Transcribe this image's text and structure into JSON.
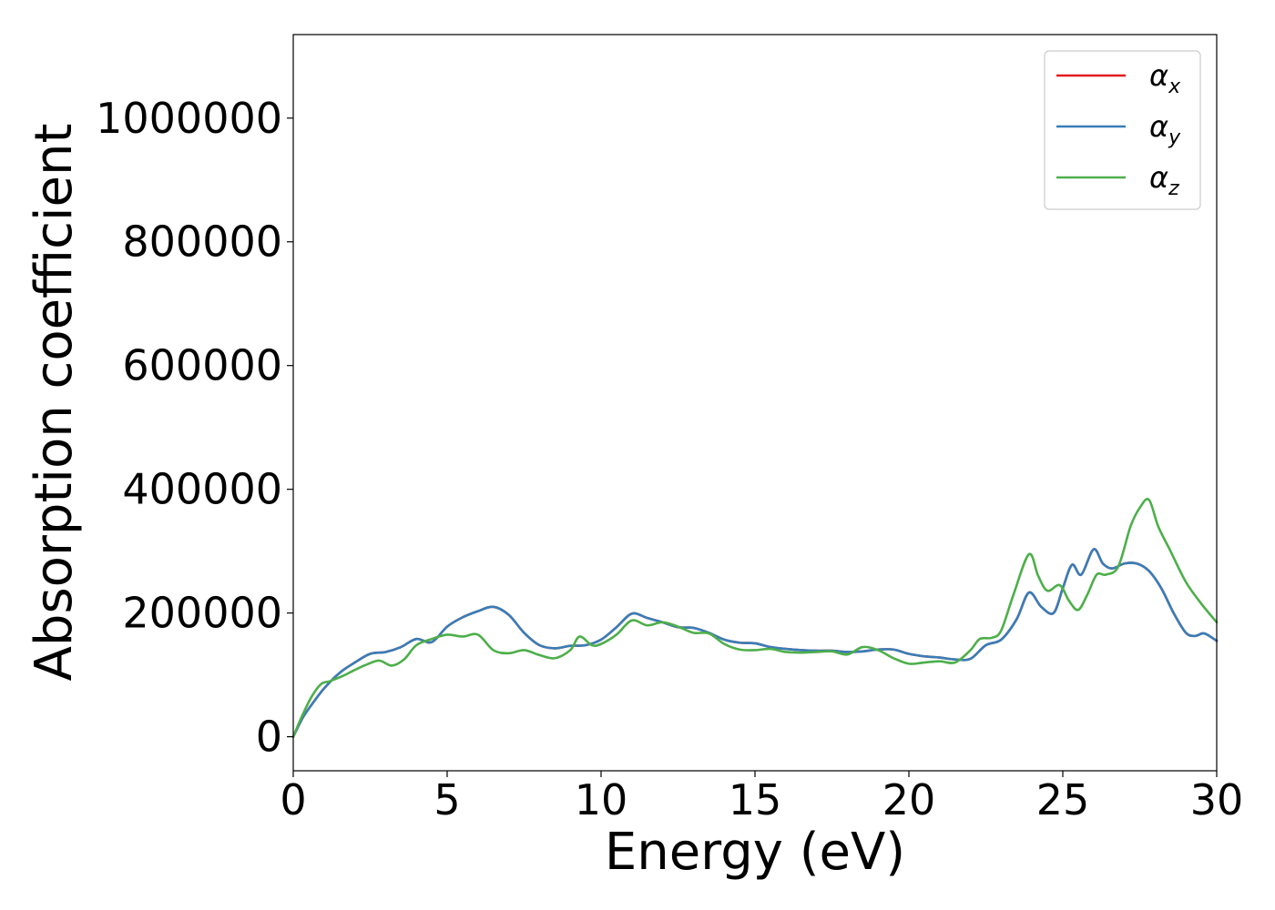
{
  "chart_data": {
    "type": "line",
    "title": "",
    "xlabel": "Energy (eV)",
    "ylabel": "Absorption coefficient",
    "xlim": [
      0,
      30
    ],
    "ylim": [
      -55000,
      1135000
    ],
    "xticks": [
      0,
      5,
      10,
      15,
      20,
      25,
      30
    ],
    "xtick_labels": [
      "0",
      "5",
      "10",
      "15",
      "20",
      "25",
      "30"
    ],
    "yticks": [
      0,
      200000,
      400000,
      600000,
      800000,
      1000000
    ],
    "ytick_labels": [
      "0",
      "200000",
      "400000",
      "600000",
      "800000",
      "1000000"
    ],
    "grid": false,
    "legend_position": "top-right",
    "series": [
      {
        "name": "α_x",
        "symbol": "α",
        "sub": "x",
        "color": "#e41a1c",
        "x": [
          0,
          0.3,
          0.6,
          1.0,
          1.5,
          2.0,
          2.5,
          3.0,
          3.5,
          4.0,
          4.5,
          5.0,
          5.5,
          6.0,
          6.5,
          7.0,
          7.5,
          8.0,
          8.5,
          9.0,
          9.5,
          10.0,
          10.5,
          11.0,
          11.5,
          12.0,
          12.5,
          13.0,
          13.5,
          14.0,
          14.5,
          15.0,
          15.5,
          16.0,
          16.5,
          17.0,
          17.5,
          18.0,
          18.5,
          19.0,
          19.5,
          20.0,
          20.5,
          21.0,
          21.5,
          22.0,
          22.5,
          23.0,
          23.5,
          23.9,
          24.3,
          24.7,
          25.0,
          25.3,
          25.6,
          26.0,
          26.3,
          26.6,
          27.0,
          27.4,
          27.8,
          28.2,
          28.6,
          29.0,
          29.3,
          29.6,
          30.0
        ],
        "y": [
          0,
          30000,
          52000,
          78000,
          103000,
          120000,
          134000,
          137000,
          145000,
          158000,
          153000,
          178000,
          193000,
          203000,
          210000,
          197000,
          168000,
          148000,
          143000,
          147000,
          148000,
          157000,
          177000,
          199000,
          192000,
          185000,
          177000,
          176000,
          168000,
          157000,
          152000,
          151000,
          145000,
          142000,
          140000,
          139000,
          139000,
          137000,
          138000,
          141000,
          141000,
          134000,
          130000,
          128000,
          125000,
          126000,
          148000,
          157000,
          190000,
          233000,
          210000,
          200000,
          240000,
          278000,
          262000,
          303000,
          280000,
          272000,
          280000,
          280000,
          268000,
          240000,
          200000,
          168000,
          163000,
          167000,
          155000
        ]
      },
      {
        "name": "α_y",
        "symbol": "α",
        "sub": "y",
        "color": "#377eb8",
        "x": [
          0,
          0.3,
          0.6,
          1.0,
          1.5,
          2.0,
          2.5,
          3.0,
          3.5,
          4.0,
          4.5,
          5.0,
          5.5,
          6.0,
          6.5,
          7.0,
          7.5,
          8.0,
          8.5,
          9.0,
          9.5,
          10.0,
          10.5,
          11.0,
          11.5,
          12.0,
          12.5,
          13.0,
          13.5,
          14.0,
          14.5,
          15.0,
          15.5,
          16.0,
          16.5,
          17.0,
          17.5,
          18.0,
          18.5,
          19.0,
          19.5,
          20.0,
          20.5,
          21.0,
          21.5,
          22.0,
          22.5,
          23.0,
          23.5,
          23.9,
          24.3,
          24.7,
          25.0,
          25.3,
          25.6,
          26.0,
          26.3,
          26.6,
          27.0,
          27.4,
          27.8,
          28.2,
          28.6,
          29.0,
          29.3,
          29.6,
          30.0
        ],
        "y": [
          0,
          30000,
          52000,
          78000,
          103000,
          120000,
          134000,
          137000,
          145000,
          158000,
          153000,
          178000,
          193000,
          203000,
          210000,
          197000,
          168000,
          148000,
          143000,
          147000,
          148000,
          157000,
          177000,
          199000,
          192000,
          185000,
          177000,
          176000,
          168000,
          157000,
          152000,
          151000,
          145000,
          142000,
          140000,
          139000,
          139000,
          137000,
          138000,
          141000,
          141000,
          134000,
          130000,
          128000,
          125000,
          126000,
          148000,
          157000,
          190000,
          233000,
          210000,
          200000,
          240000,
          278000,
          262000,
          303000,
          280000,
          272000,
          280000,
          280000,
          268000,
          240000,
          200000,
          168000,
          163000,
          167000,
          155000
        ]
      },
      {
        "name": "α_z",
        "symbol": "α",
        "sub": "z",
        "color": "#4daf4a",
        "x": [
          0,
          0.3,
          0.6,
          0.9,
          1.2,
          1.6,
          2.0,
          2.4,
          2.8,
          3.2,
          3.6,
          4.0,
          4.5,
          5.0,
          5.5,
          6.0,
          6.5,
          7.0,
          7.5,
          8.0,
          8.5,
          9.0,
          9.3,
          9.7,
          10.0,
          10.5,
          11.0,
          11.5,
          12.0,
          12.5,
          13.0,
          13.5,
          14.0,
          14.5,
          15.0,
          15.5,
          16.0,
          16.5,
          17.0,
          17.5,
          18.0,
          18.5,
          19.0,
          19.5,
          20.0,
          20.5,
          21.0,
          21.5,
          22.0,
          22.3,
          22.7,
          23.0,
          23.4,
          23.9,
          24.2,
          24.5,
          24.9,
          25.2,
          25.5,
          25.8,
          26.1,
          26.4,
          26.8,
          27.2,
          27.5,
          27.8,
          28.1,
          28.5,
          29.0,
          29.5,
          30.0
        ],
        "y": [
          0,
          35000,
          65000,
          85000,
          90000,
          98000,
          108000,
          117000,
          123000,
          115000,
          125000,
          148000,
          158000,
          165000,
          162000,
          165000,
          140000,
          135000,
          140000,
          132000,
          127000,
          140000,
          162000,
          148000,
          150000,
          165000,
          188000,
          180000,
          185000,
          178000,
          168000,
          167000,
          150000,
          141000,
          140000,
          142000,
          137000,
          136000,
          137000,
          138000,
          133000,
          145000,
          140000,
          127000,
          118000,
          120000,
          122000,
          120000,
          140000,
          158000,
          160000,
          172000,
          230000,
          295000,
          260000,
          236000,
          245000,
          220000,
          205000,
          230000,
          262000,
          262000,
          275000,
          340000,
          370000,
          383000,
          340000,
          300000,
          250000,
          215000,
          185000
        ]
      }
    ]
  }
}
